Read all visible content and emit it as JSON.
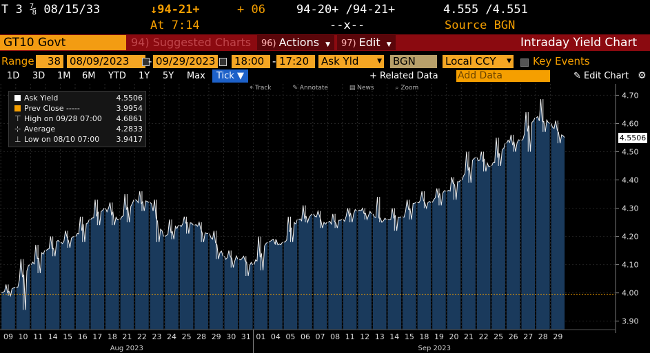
{
  "header": {
    "security": "T 3 ⅞ 08/15/33",
    "last_price": "↓94-21+",
    "change": "+ 06",
    "bid_ask": "94-20+ /94-21+",
    "yield_bid_ask": "4.555 /4.551",
    "time": "At 7:14",
    "size": "--x--",
    "source": "Source BGN"
  },
  "toolbar": {
    "ticker": "GT10 Govt",
    "suggested": "94) Suggested Charts",
    "actions_num": "96)",
    "actions": "Actions",
    "edit_num": "97)",
    "edit": "Edit",
    "title": "Intraday Yield Chart"
  },
  "range": {
    "label": "Range",
    "days": "38",
    "start_date": "08/09/2023",
    "end_date": "09/29/2023",
    "start_time": "18:00",
    "end_time": "17:20",
    "field": "Ask Yld",
    "source": "BGN",
    "currency": "Local CCY",
    "key_events": "Key Events"
  },
  "timeframes": [
    "1D",
    "3D",
    "1M",
    "6M",
    "YTD",
    "1Y",
    "5Y",
    "Max"
  ],
  "tick_label": "Tick ▼",
  "related_data": "+ Related Data",
  "add_data_placeholder": "Add Data",
  "edit_chart": "Edit Chart",
  "chart_tools": [
    "Track",
    "Annotate",
    "News",
    "Zoom"
  ],
  "legend": [
    {
      "label": "Ask Yield",
      "value": "4.5506",
      "color": "#ffffff"
    },
    {
      "label": "Prev Close -----",
      "value": "3.9954",
      "color": "#f59f00"
    },
    {
      "label": "High on 09/28 07:00",
      "value": "4.6861",
      "color": "#cccccc"
    },
    {
      "label": "Average",
      "value": "4.2833",
      "color": "#cccccc"
    },
    {
      "label": "Low on 08/10 07:00",
      "value": "3.9417",
      "color": "#cccccc"
    }
  ],
  "colors": {
    "amber": "#f59f00",
    "bar": "#8b0a10",
    "area": "#1a3a5c",
    "tick_btn": "#1d61c9"
  },
  "chart_data": {
    "type": "area",
    "title": "",
    "xlabel": "",
    "ylabel": "",
    "ylim": [
      3.87,
      4.74
    ],
    "y_ticks": [
      3.9,
      4.0,
      4.1,
      4.2,
      4.3,
      4.4,
      4.5,
      4.6,
      4.7
    ],
    "current_value": 4.5506,
    "prev_close": 3.9954,
    "x_day_labels": [
      "09",
      "10",
      "11",
      "14",
      "15",
      "16",
      "17",
      "18",
      "21",
      "22",
      "23",
      "24",
      "25",
      "28",
      "29",
      "30",
      "31",
      "01",
      "04",
      "05",
      "06",
      "07",
      "08",
      "11",
      "12",
      "13",
      "14",
      "15",
      "18",
      "19",
      "20",
      "21",
      "22",
      "25",
      "26",
      "27",
      "28",
      "29"
    ],
    "month_labels": [
      "Aug 2023",
      "Sep 2023"
    ],
    "daily": [
      {
        "day": "09",
        "open": 4.0,
        "high": 4.03,
        "low": 3.99,
        "close": 4.02
      },
      {
        "day": "10",
        "open": 4.02,
        "high": 4.12,
        "low": 3.94,
        "close": 4.1
      },
      {
        "day": "11",
        "open": 4.1,
        "high": 4.17,
        "low": 4.07,
        "close": 4.15
      },
      {
        "day": "14",
        "open": 4.15,
        "high": 4.2,
        "low": 4.13,
        "close": 4.18
      },
      {
        "day": "15",
        "open": 4.18,
        "high": 4.22,
        "low": 4.16,
        "close": 4.2
      },
      {
        "day": "16",
        "open": 4.2,
        "high": 4.27,
        "low": 4.18,
        "close": 4.26
      },
      {
        "day": "17",
        "open": 4.26,
        "high": 4.33,
        "low": 4.24,
        "close": 4.3
      },
      {
        "day": "18",
        "open": 4.3,
        "high": 4.32,
        "low": 4.24,
        "close": 4.26
      },
      {
        "day": "21",
        "open": 4.26,
        "high": 4.35,
        "low": 4.25,
        "close": 4.33
      },
      {
        "day": "22",
        "open": 4.33,
        "high": 4.36,
        "low": 4.29,
        "close": 4.32
      },
      {
        "day": "23",
        "open": 4.32,
        "high": 4.33,
        "low": 4.18,
        "close": 4.2
      },
      {
        "day": "24",
        "open": 4.2,
        "high": 4.26,
        "low": 4.19,
        "close": 4.24
      },
      {
        "day": "25",
        "open": 4.24,
        "high": 4.27,
        "low": 4.21,
        "close": 4.24
      },
      {
        "day": "28",
        "open": 4.24,
        "high": 4.25,
        "low": 4.18,
        "close": 4.21
      },
      {
        "day": "29",
        "open": 4.21,
        "high": 4.22,
        "low": 4.12,
        "close": 4.13
      },
      {
        "day": "30",
        "open": 4.13,
        "high": 4.15,
        "low": 4.09,
        "close": 4.12
      },
      {
        "day": "31",
        "open": 4.12,
        "high": 4.13,
        "low": 4.06,
        "close": 4.1
      },
      {
        "day": "01",
        "open": 4.1,
        "high": 4.2,
        "low": 4.08,
        "close": 4.18
      },
      {
        "day": "04",
        "open": 4.18,
        "high": 4.19,
        "low": 4.17,
        "close": 4.18
      },
      {
        "day": "05",
        "open": 4.18,
        "high": 4.27,
        "low": 4.18,
        "close": 4.26
      },
      {
        "day": "06",
        "open": 4.26,
        "high": 4.31,
        "low": 4.25,
        "close": 4.28
      },
      {
        "day": "07",
        "open": 4.28,
        "high": 4.29,
        "low": 4.23,
        "close": 4.25
      },
      {
        "day": "08",
        "open": 4.25,
        "high": 4.28,
        "low": 4.23,
        "close": 4.26
      },
      {
        "day": "11",
        "open": 4.26,
        "high": 4.3,
        "low": 4.25,
        "close": 4.29
      },
      {
        "day": "12",
        "open": 4.29,
        "high": 4.3,
        "low": 4.26,
        "close": 4.28
      },
      {
        "day": "13",
        "open": 4.28,
        "high": 4.34,
        "low": 4.25,
        "close": 4.26
      },
      {
        "day": "14",
        "open": 4.26,
        "high": 4.3,
        "low": 4.22,
        "close": 4.27
      },
      {
        "day": "15",
        "open": 4.27,
        "high": 4.33,
        "low": 4.26,
        "close": 4.32
      },
      {
        "day": "18",
        "open": 4.32,
        "high": 4.36,
        "low": 4.3,
        "close": 4.32
      },
      {
        "day": "19",
        "open": 4.32,
        "high": 4.37,
        "low": 4.31,
        "close": 4.36
      },
      {
        "day": "20",
        "open": 4.36,
        "high": 4.41,
        "low": 4.33,
        "close": 4.4
      },
      {
        "day": "21",
        "open": 4.4,
        "high": 4.5,
        "low": 4.39,
        "close": 4.48
      },
      {
        "day": "22",
        "open": 4.48,
        "high": 4.5,
        "low": 4.43,
        "close": 4.45
      },
      {
        "day": "25",
        "open": 4.45,
        "high": 4.55,
        "low": 4.45,
        "close": 4.53
      },
      {
        "day": "26",
        "open": 4.53,
        "high": 4.56,
        "low": 4.5,
        "close": 4.54
      },
      {
        "day": "27",
        "open": 4.54,
        "high": 4.64,
        "low": 4.5,
        "close": 4.62
      },
      {
        "day": "28",
        "open": 4.62,
        "high": 4.6861,
        "low": 4.57,
        "close": 4.6
      },
      {
        "day": "29",
        "open": 4.6,
        "high": 4.61,
        "low": 4.53,
        "close": 4.5506
      }
    ]
  }
}
